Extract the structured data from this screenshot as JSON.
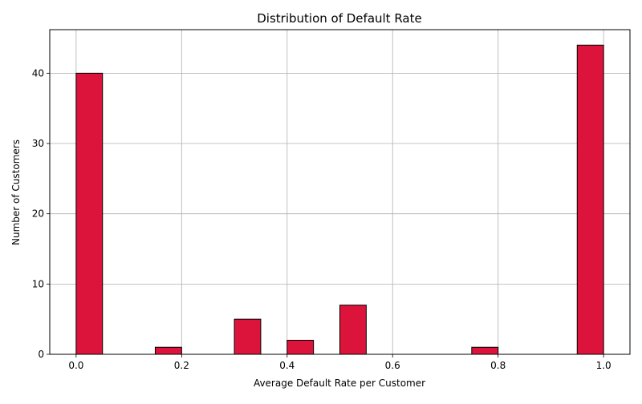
{
  "chart_data": {
    "type": "bar",
    "title": "Distribution of Default Rate",
    "xlabel": "Average Default Rate per Customer",
    "ylabel": "Number of Customers",
    "xlim": [
      -0.05,
      1.05
    ],
    "ylim": [
      0,
      46.2
    ],
    "xticks": [
      0.0,
      0.2,
      0.4,
      0.6,
      0.8,
      1.0
    ],
    "xtick_labels": [
      "0.0",
      "0.2",
      "0.4",
      "0.6",
      "0.8",
      "1.0"
    ],
    "yticks": [
      0,
      10,
      20,
      30,
      40
    ],
    "ytick_labels": [
      "0",
      "10",
      "20",
      "30",
      "40"
    ],
    "grid": true,
    "bar_color": "#DC143C",
    "edge_color": "#000000",
    "bins": [
      {
        "x0": 0.0,
        "x1": 0.05,
        "count": 40
      },
      {
        "x0": 0.05,
        "x1": 0.1,
        "count": 0
      },
      {
        "x0": 0.1,
        "x1": 0.15,
        "count": 0
      },
      {
        "x0": 0.15,
        "x1": 0.2,
        "count": 1
      },
      {
        "x0": 0.2,
        "x1": 0.25,
        "count": 0
      },
      {
        "x0": 0.25,
        "x1": 0.3,
        "count": 0
      },
      {
        "x0": 0.3,
        "x1": 0.35,
        "count": 5
      },
      {
        "x0": 0.35,
        "x1": 0.4,
        "count": 0
      },
      {
        "x0": 0.4,
        "x1": 0.45,
        "count": 2
      },
      {
        "x0": 0.45,
        "x1": 0.5,
        "count": 0
      },
      {
        "x0": 0.5,
        "x1": 0.55,
        "count": 7
      },
      {
        "x0": 0.55,
        "x1": 0.6,
        "count": 0
      },
      {
        "x0": 0.6,
        "x1": 0.65,
        "count": 0
      },
      {
        "x0": 0.65,
        "x1": 0.7,
        "count": 0
      },
      {
        "x0": 0.7,
        "x1": 0.75,
        "count": 0
      },
      {
        "x0": 0.75,
        "x1": 0.8,
        "count": 1
      },
      {
        "x0": 0.8,
        "x1": 0.85,
        "count": 0
      },
      {
        "x0": 0.85,
        "x1": 0.9,
        "count": 0
      },
      {
        "x0": 0.9,
        "x1": 0.95,
        "count": 0
      },
      {
        "x0": 0.95,
        "x1": 1.0,
        "count": 44
      }
    ]
  }
}
